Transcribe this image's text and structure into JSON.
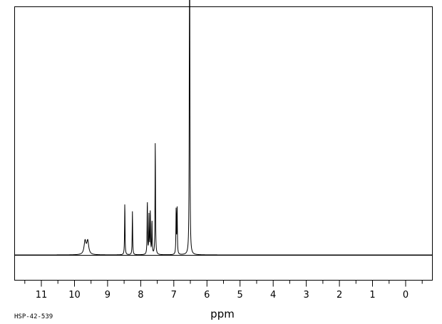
{
  "chart_data": {
    "type": "line",
    "title": "",
    "xlabel": "ppm",
    "ylabel": "",
    "xlim": [
      12.2,
      -0.8
    ],
    "ylim": [
      -0.1,
      1.0
    ],
    "x_reversed": true,
    "grid": false,
    "x_ticks": [
      11,
      10,
      9,
      8,
      7,
      6,
      5,
      4,
      3,
      2,
      1,
      0
    ],
    "x_minor_step": 0.5,
    "baseline": 0,
    "peaks": [
      {
        "x": 9.68,
        "y": 0.055,
        "w": 0.035
      },
      {
        "x": 9.6,
        "y": 0.055,
        "w": 0.035
      },
      {
        "x": 8.48,
        "y": 0.215
      },
      {
        "x": 8.25,
        "y": 0.18
      },
      {
        "x": 7.8,
        "y": 0.225
      },
      {
        "x": 7.75,
        "y": 0.16
      },
      {
        "x": 7.71,
        "y": 0.18
      },
      {
        "x": 7.66,
        "y": 0.14
      },
      {
        "x": 7.56,
        "y": 0.47
      },
      {
        "x": 6.93,
        "y": 0.19
      },
      {
        "x": 6.9,
        "y": 0.19
      },
      {
        "x": 6.53,
        "y": 0.605
      },
      {
        "x": 6.52,
        "y": 0.955
      }
    ]
  },
  "spectrum_code": "HSP-42-539",
  "colors": {
    "line": "#000000",
    "frame": "#000000",
    "background": "#ffffff"
  }
}
